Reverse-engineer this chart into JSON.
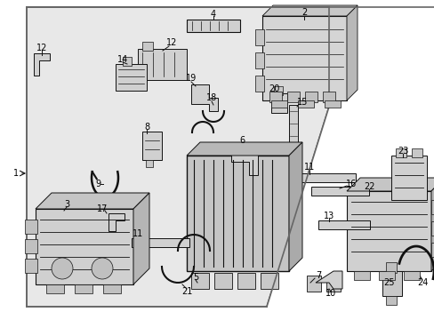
{
  "bg_color": "#ffffff",
  "fig_width": 4.89,
  "fig_height": 3.6,
  "dpi": 100,
  "label_fontsize": 7.0,
  "label_color": "#000000",
  "part_color": "#d0d0d0",
  "line_color": "#111111",
  "bg_inner": "#e8e8e8"
}
